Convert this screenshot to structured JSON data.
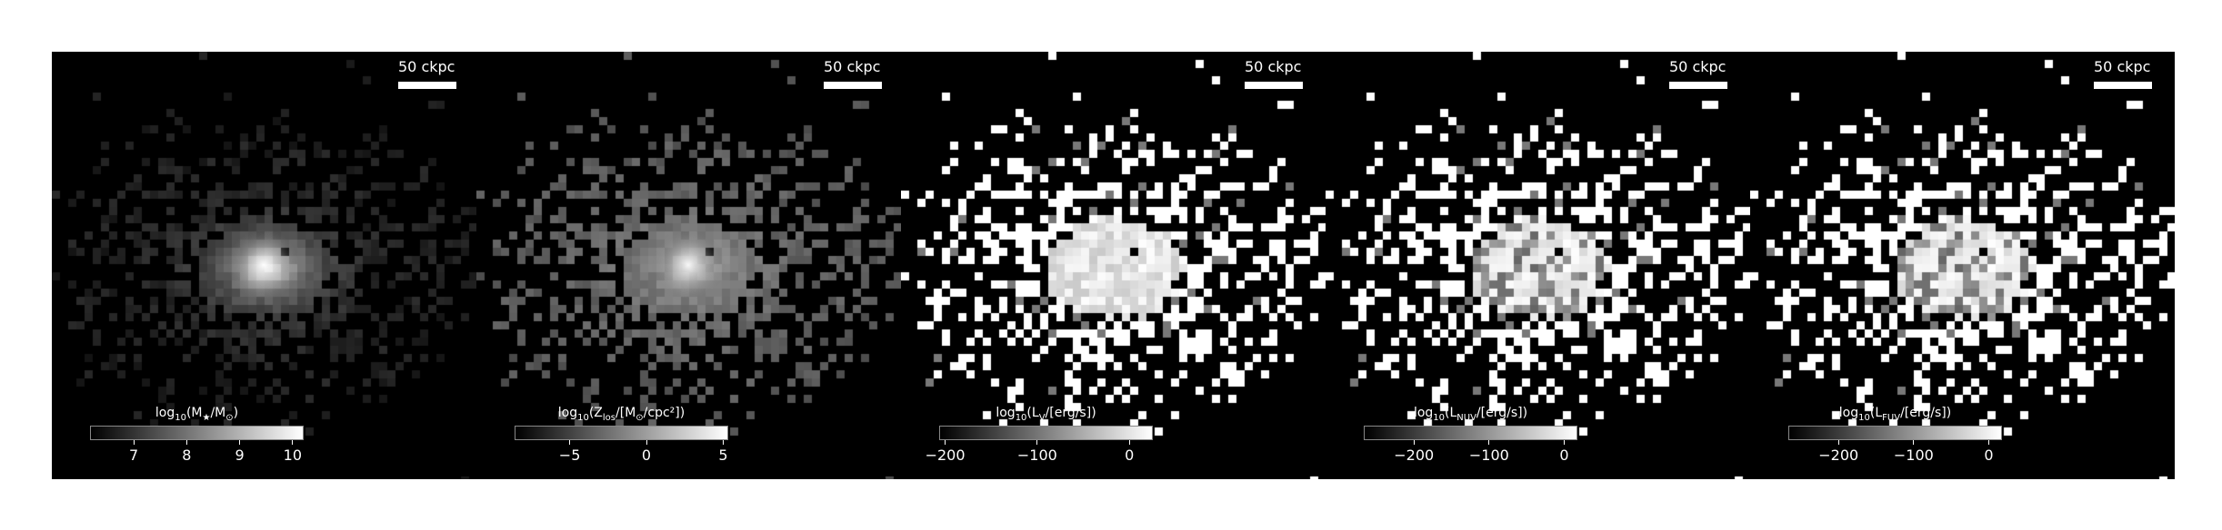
{
  "panels": [
    {
      "name": "stellar-mass",
      "scalebar": "50 ckpc",
      "colorbar": {
        "pre": "log",
        "sub1": "10",
        "mid1": "(M",
        "sub2": "★",
        "mid2": "/M",
        "sub3": "⊙",
        "post": ")",
        "range": [
          6.2,
          10.2
        ],
        "ticks": [
          {
            "v": 7,
            "label": "7"
          },
          {
            "v": 8,
            "label": "8"
          },
          {
            "v": 9,
            "label": "9"
          },
          {
            "v": 10,
            "label": "10"
          }
        ]
      }
    },
    {
      "name": "metallicity",
      "scalebar": "50 ckpc",
      "colorbar": {
        "pre": "log",
        "sub1": "10",
        "mid1": "(Z",
        "sub2": "los",
        "mid2": "/[M",
        "sub3": "⊙",
        "post": "/cpc²])",
        "range": [
          -8.5,
          5.3
        ],
        "ticks": [
          {
            "v": -5,
            "label": "−5"
          },
          {
            "v": 0,
            "label": "0"
          },
          {
            "v": 5,
            "label": "5"
          }
        ]
      }
    },
    {
      "name": "v-band-luminosity",
      "scalebar": "50 ckpc",
      "colorbar": {
        "pre": "log",
        "sub1": "10",
        "mid1": "(L",
        "sub2": "V",
        "mid2": "/[erg/s])",
        "sub3": "",
        "post": "",
        "range": [
          -205,
          25
        ],
        "ticks": [
          {
            "v": -200,
            "label": "−200"
          },
          {
            "v": -100,
            "label": "−100"
          },
          {
            "v": 0,
            "label": "0"
          }
        ]
      }
    },
    {
      "name": "nuv-luminosity",
      "scalebar": "50 ckpc",
      "colorbar": {
        "pre": "log",
        "sub1": "10",
        "mid1": "(L",
        "sub2": "NUV",
        "mid2": "/[erg/s])",
        "sub3": "",
        "post": "",
        "range": [
          -265,
          17
        ],
        "ticks": [
          {
            "v": -200,
            "label": "−200"
          },
          {
            "v": -100,
            "label": "−100"
          },
          {
            "v": 0,
            "label": "0"
          }
        ]
      }
    },
    {
      "name": "fuv-luminosity",
      "scalebar": "50 ckpc",
      "colorbar": {
        "pre": "log",
        "sub1": "10",
        "mid1": "(L",
        "sub2": "FUV",
        "mid2": "/[erg/s])",
        "sub3": "",
        "post": "",
        "range": [
          -265,
          17
        ],
        "ticks": [
          {
            "v": -200,
            "label": "−200"
          },
          {
            "v": -100,
            "label": "−100"
          },
          {
            "v": 0,
            "label": "0"
          }
        ]
      }
    }
  ]
}
